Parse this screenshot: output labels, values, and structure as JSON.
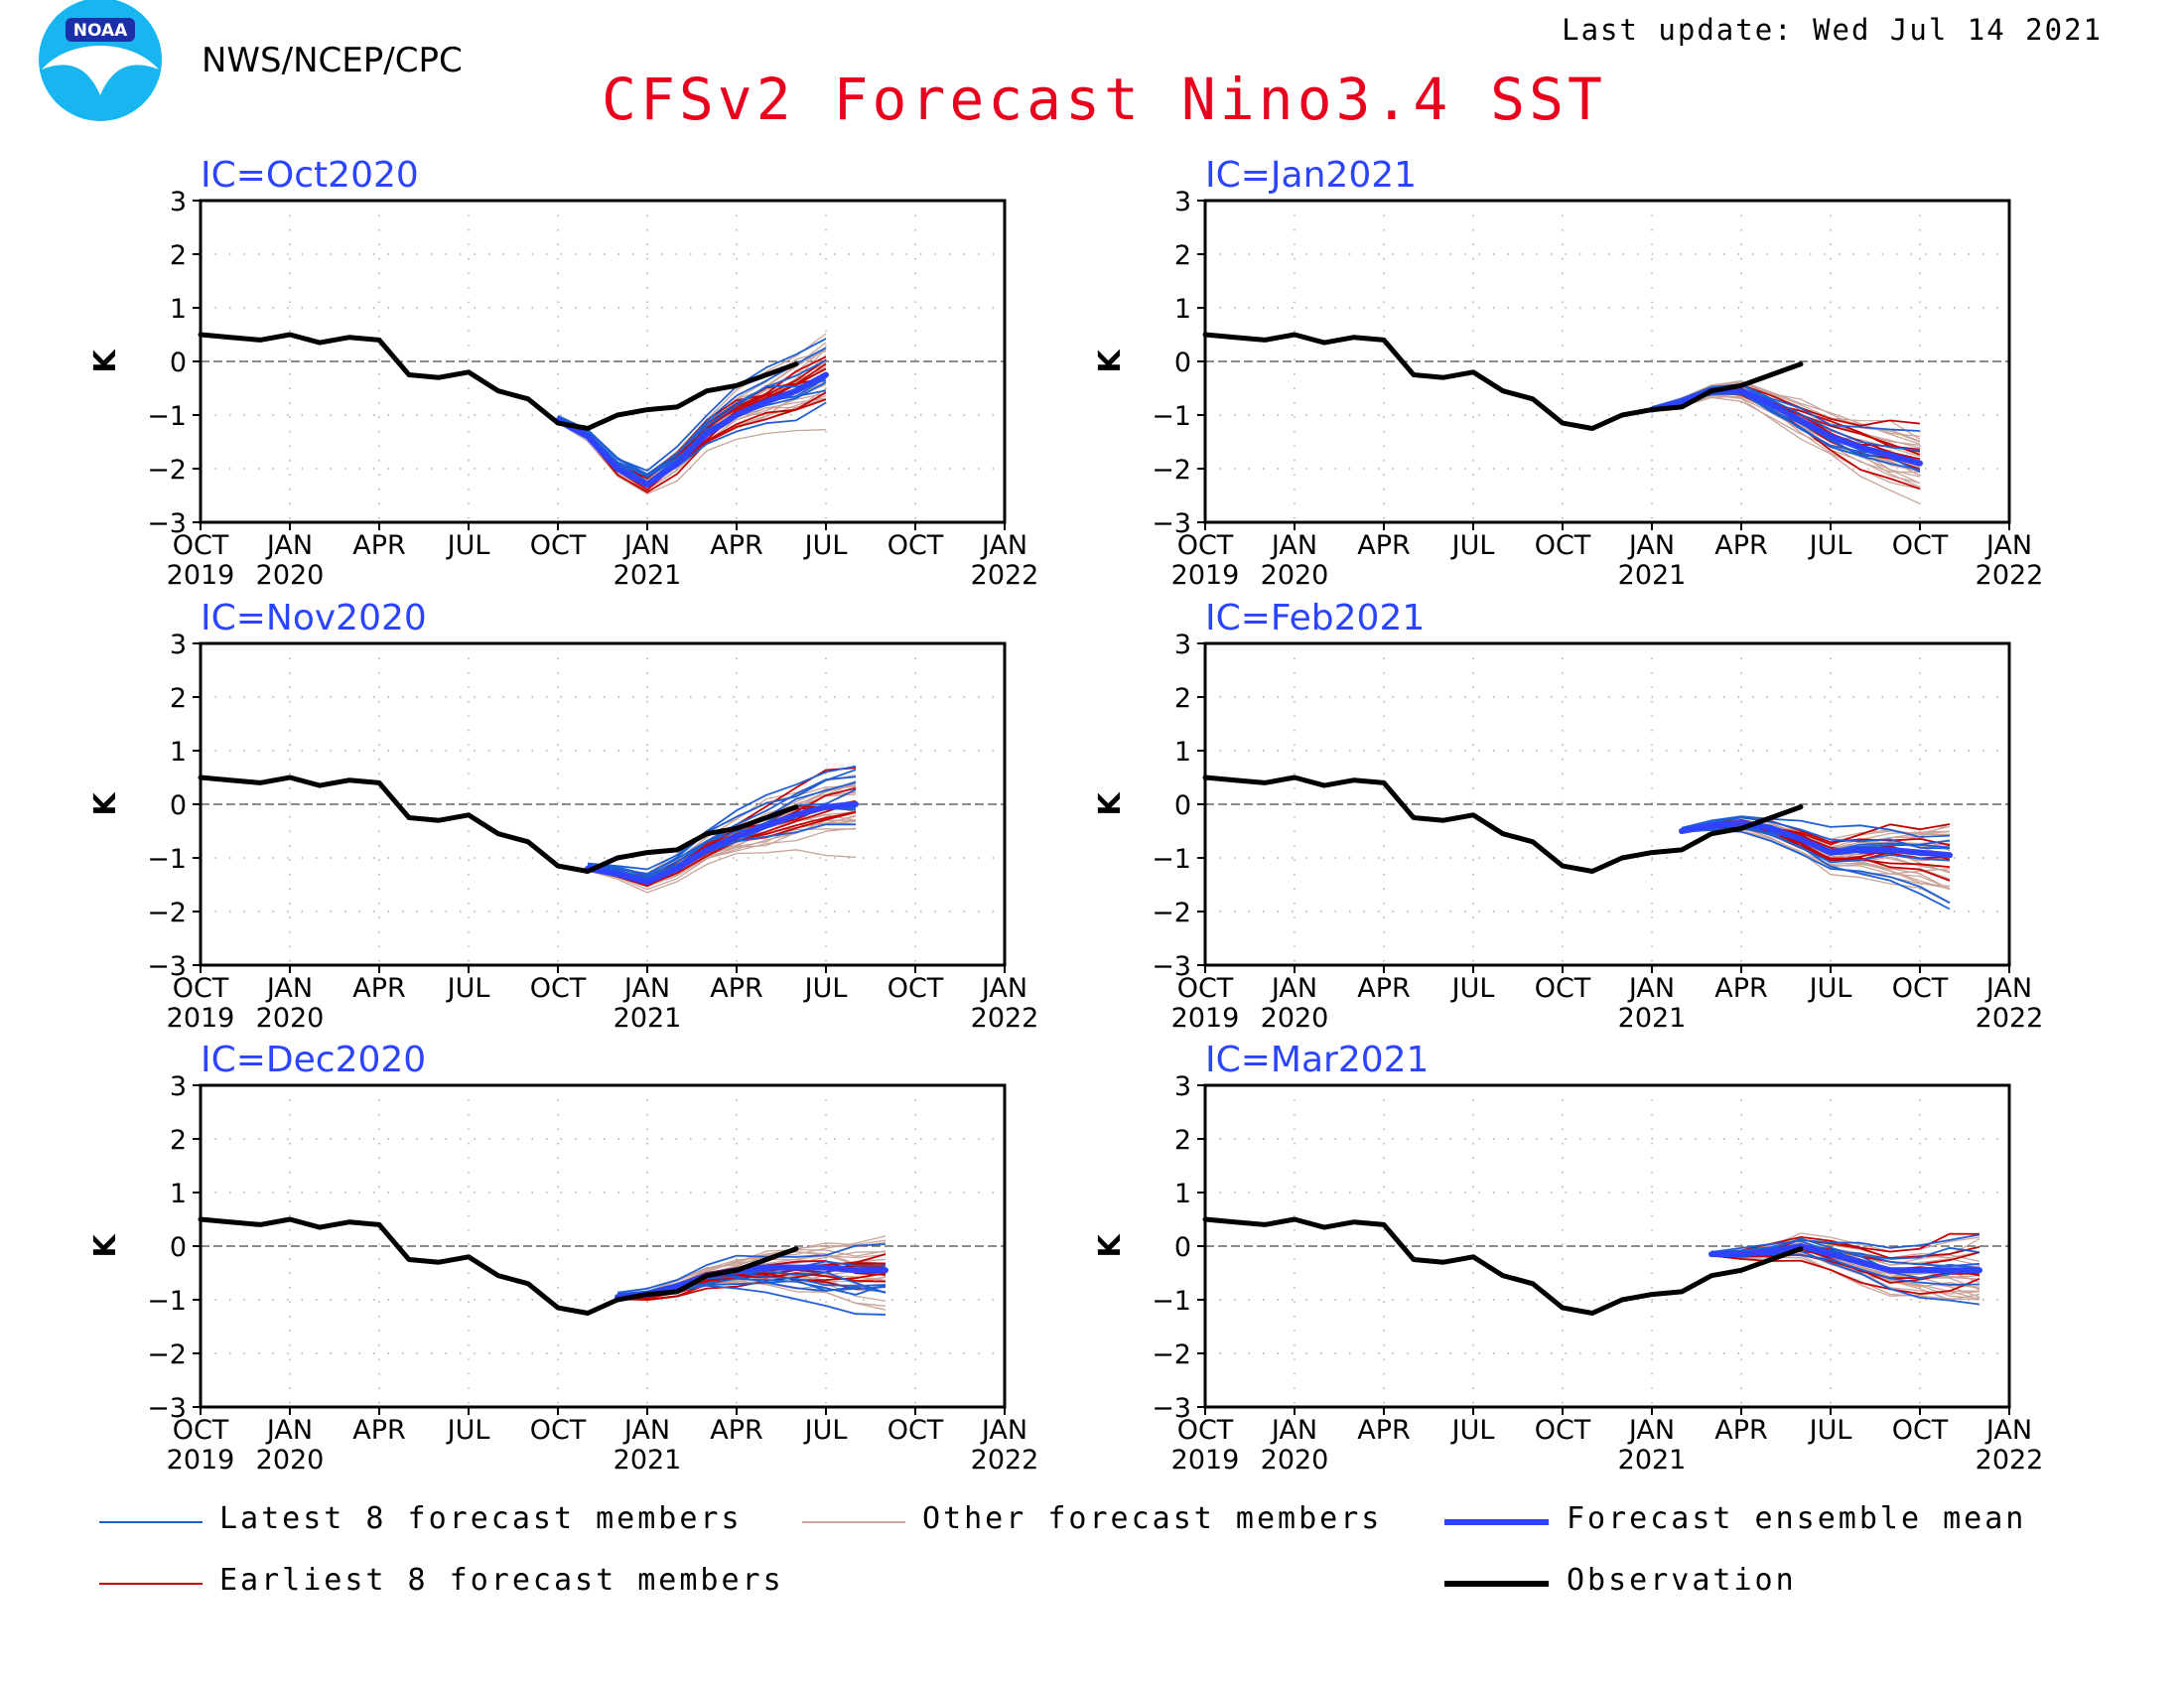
{
  "header": {
    "logo_text": "NOAA",
    "agency": "NWS/NCEP/CPC",
    "title": "CFSv2 Forecast Nino3.4 SST",
    "last_update": "Last update: Wed Jul 14 2021"
  },
  "colors": {
    "title": "#e8001c",
    "panel_label": "#2b44ff",
    "observation": "#000000",
    "ensemble_mean": "#2e42ff",
    "latest_members": "#1f5fd6",
    "earliest_members": "#c40000",
    "other_members": "#c9a49a",
    "logo_blue": "#19b5f0"
  },
  "axes": {
    "y_label": "K",
    "y_ticks": [
      "3",
      "2",
      "1",
      "0",
      "−1",
      "−2",
      "−3"
    ],
    "ylim": [
      -3,
      3
    ],
    "x_months": [
      "OCT",
      "JAN",
      "APR",
      "JUL",
      "OCT",
      "JAN",
      "APR",
      "JUL",
      "OCT",
      "JAN"
    ],
    "x_years": [
      "2019",
      "2020",
      "",
      "",
      "",
      "2021",
      "",
      "",
      "",
      "2022"
    ],
    "xlim": [
      "2019-10",
      "2022-01"
    ]
  },
  "legend": {
    "latest": "Latest 8 forecast members",
    "other": "Other forecast members",
    "mean": "Forecast ensemble mean",
    "earliest": "Earliest 8 forecast members",
    "observation": "Observation"
  },
  "chart_data": [
    {
      "type": "line",
      "panel_label": "IC=Oct2020",
      "observation": {
        "x": [
          "2019-10",
          "2019-11",
          "2019-12",
          "2020-01",
          "2020-02",
          "2020-03",
          "2020-04",
          "2020-05",
          "2020-06",
          "2020-07",
          "2020-08",
          "2020-09",
          "2020-10",
          "2020-11",
          "2020-12",
          "2021-01",
          "2021-02",
          "2021-03",
          "2021-04",
          "2021-05",
          "2021-06"
        ],
        "y": [
          0.5,
          0.45,
          0.4,
          0.5,
          0.35,
          0.45,
          0.4,
          -0.25,
          -0.3,
          -0.2,
          -0.55,
          -0.7,
          -1.15,
          -1.25,
          -1.0,
          -0.9,
          -0.85,
          -0.55,
          -0.45,
          -0.25,
          -0.05
        ]
      },
      "ensemble_mean": {
        "x": [
          "2020-10",
          "2020-11",
          "2020-12",
          "2021-01",
          "2021-02",
          "2021-03",
          "2021-04",
          "2021-05",
          "2021-06",
          "2021-07"
        ],
        "y": [
          -1.1,
          -1.4,
          -2.0,
          -2.3,
          -1.9,
          -1.35,
          -1.0,
          -0.75,
          -0.55,
          -0.25
        ]
      }
    },
    {
      "type": "line",
      "panel_label": "IC=Nov2020",
      "observation": {
        "x": [
          "2019-10",
          "2019-11",
          "2019-12",
          "2020-01",
          "2020-02",
          "2020-03",
          "2020-04",
          "2020-05",
          "2020-06",
          "2020-07",
          "2020-08",
          "2020-09",
          "2020-10",
          "2020-11",
          "2020-12",
          "2021-01",
          "2021-02",
          "2021-03",
          "2021-04",
          "2021-05",
          "2021-06"
        ],
        "y": [
          0.5,
          0.45,
          0.4,
          0.5,
          0.35,
          0.45,
          0.4,
          -0.25,
          -0.3,
          -0.2,
          -0.55,
          -0.7,
          -1.15,
          -1.25,
          -1.0,
          -0.9,
          -0.85,
          -0.55,
          -0.45,
          -0.25,
          -0.05
        ]
      },
      "ensemble_mean": {
        "x": [
          "2020-11",
          "2020-12",
          "2021-01",
          "2021-02",
          "2021-03",
          "2021-04",
          "2021-05",
          "2021-06",
          "2021-07",
          "2021-08"
        ],
        "y": [
          -1.2,
          -1.3,
          -1.45,
          -1.2,
          -0.85,
          -0.6,
          -0.4,
          -0.2,
          -0.05,
          0.0
        ]
      }
    },
    {
      "type": "line",
      "panel_label": "IC=Dec2020",
      "observation": {
        "x": [
          "2019-10",
          "2019-11",
          "2019-12",
          "2020-01",
          "2020-02",
          "2020-03",
          "2020-04",
          "2020-05",
          "2020-06",
          "2020-07",
          "2020-08",
          "2020-09",
          "2020-10",
          "2020-11",
          "2020-12",
          "2021-01",
          "2021-02",
          "2021-03",
          "2021-04",
          "2021-05",
          "2021-06"
        ],
        "y": [
          0.5,
          0.45,
          0.4,
          0.5,
          0.35,
          0.45,
          0.4,
          -0.25,
          -0.3,
          -0.2,
          -0.55,
          -0.7,
          -1.15,
          -1.25,
          -1.0,
          -0.9,
          -0.85,
          -0.55,
          -0.45,
          -0.25,
          -0.05
        ]
      },
      "ensemble_mean": {
        "x": [
          "2020-12",
          "2021-01",
          "2021-02",
          "2021-03",
          "2021-04",
          "2021-05",
          "2021-06",
          "2021-07",
          "2021-08",
          "2021-09"
        ],
        "y": [
          -0.95,
          -0.9,
          -0.75,
          -0.55,
          -0.45,
          -0.4,
          -0.4,
          -0.4,
          -0.45,
          -0.45
        ]
      }
    },
    {
      "type": "line",
      "panel_label": "IC=Jan2021",
      "observation": {
        "x": [
          "2019-10",
          "2019-11",
          "2019-12",
          "2020-01",
          "2020-02",
          "2020-03",
          "2020-04",
          "2020-05",
          "2020-06",
          "2020-07",
          "2020-08",
          "2020-09",
          "2020-10",
          "2020-11",
          "2020-12",
          "2021-01",
          "2021-02",
          "2021-03",
          "2021-04",
          "2021-05",
          "2021-06"
        ],
        "y": [
          0.5,
          0.45,
          0.4,
          0.5,
          0.35,
          0.45,
          0.4,
          -0.25,
          -0.3,
          -0.2,
          -0.55,
          -0.7,
          -1.15,
          -1.25,
          -1.0,
          -0.9,
          -0.85,
          -0.55,
          -0.45,
          -0.25,
          -0.05
        ]
      },
      "ensemble_mean": {
        "x": [
          "2021-01",
          "2021-02",
          "2021-03",
          "2021-04",
          "2021-05",
          "2021-06",
          "2021-07",
          "2021-08",
          "2021-09",
          "2021-10"
        ],
        "y": [
          -0.9,
          -0.75,
          -0.55,
          -0.55,
          -0.8,
          -1.1,
          -1.4,
          -1.6,
          -1.75,
          -1.9
        ]
      }
    },
    {
      "type": "line",
      "panel_label": "IC=Feb2021",
      "observation": {
        "x": [
          "2019-10",
          "2019-11",
          "2019-12",
          "2020-01",
          "2020-02",
          "2020-03",
          "2020-04",
          "2020-05",
          "2020-06",
          "2020-07",
          "2020-08",
          "2020-09",
          "2020-10",
          "2020-11",
          "2020-12",
          "2021-01",
          "2021-02",
          "2021-03",
          "2021-04",
          "2021-05",
          "2021-06"
        ],
        "y": [
          0.5,
          0.45,
          0.4,
          0.5,
          0.35,
          0.45,
          0.4,
          -0.25,
          -0.3,
          -0.2,
          -0.55,
          -0.7,
          -1.15,
          -1.25,
          -1.0,
          -0.9,
          -0.85,
          -0.55,
          -0.45,
          -0.25,
          -0.05
        ]
      },
      "ensemble_mean": {
        "x": [
          "2021-02",
          "2021-03",
          "2021-04",
          "2021-05",
          "2021-06",
          "2021-07",
          "2021-08",
          "2021-09",
          "2021-10",
          "2021-11"
        ],
        "y": [
          -0.5,
          -0.4,
          -0.35,
          -0.45,
          -0.65,
          -0.9,
          -0.85,
          -0.85,
          -0.9,
          -0.95
        ]
      }
    },
    {
      "type": "line",
      "panel_label": "IC=Mar2021",
      "observation": {
        "x": [
          "2019-10",
          "2019-11",
          "2019-12",
          "2020-01",
          "2020-02",
          "2020-03",
          "2020-04",
          "2020-05",
          "2020-06",
          "2020-07",
          "2020-08",
          "2020-09",
          "2020-10",
          "2020-11",
          "2020-12",
          "2021-01",
          "2021-02",
          "2021-03",
          "2021-04",
          "2021-05",
          "2021-06"
        ],
        "y": [
          0.5,
          0.45,
          0.4,
          0.5,
          0.35,
          0.45,
          0.4,
          -0.25,
          -0.3,
          -0.2,
          -0.55,
          -0.7,
          -1.15,
          -1.25,
          -1.0,
          -0.9,
          -0.85,
          -0.55,
          -0.45,
          -0.25,
          -0.05
        ]
      },
      "ensemble_mean": {
        "x": [
          "2021-03",
          "2021-04",
          "2021-05",
          "2021-06",
          "2021-07",
          "2021-08",
          "2021-09",
          "2021-10",
          "2021-11",
          "2021-12"
        ],
        "y": [
          -0.15,
          -0.15,
          -0.1,
          0.0,
          -0.15,
          -0.3,
          -0.45,
          -0.45,
          -0.45,
          -0.45
        ]
      }
    }
  ]
}
